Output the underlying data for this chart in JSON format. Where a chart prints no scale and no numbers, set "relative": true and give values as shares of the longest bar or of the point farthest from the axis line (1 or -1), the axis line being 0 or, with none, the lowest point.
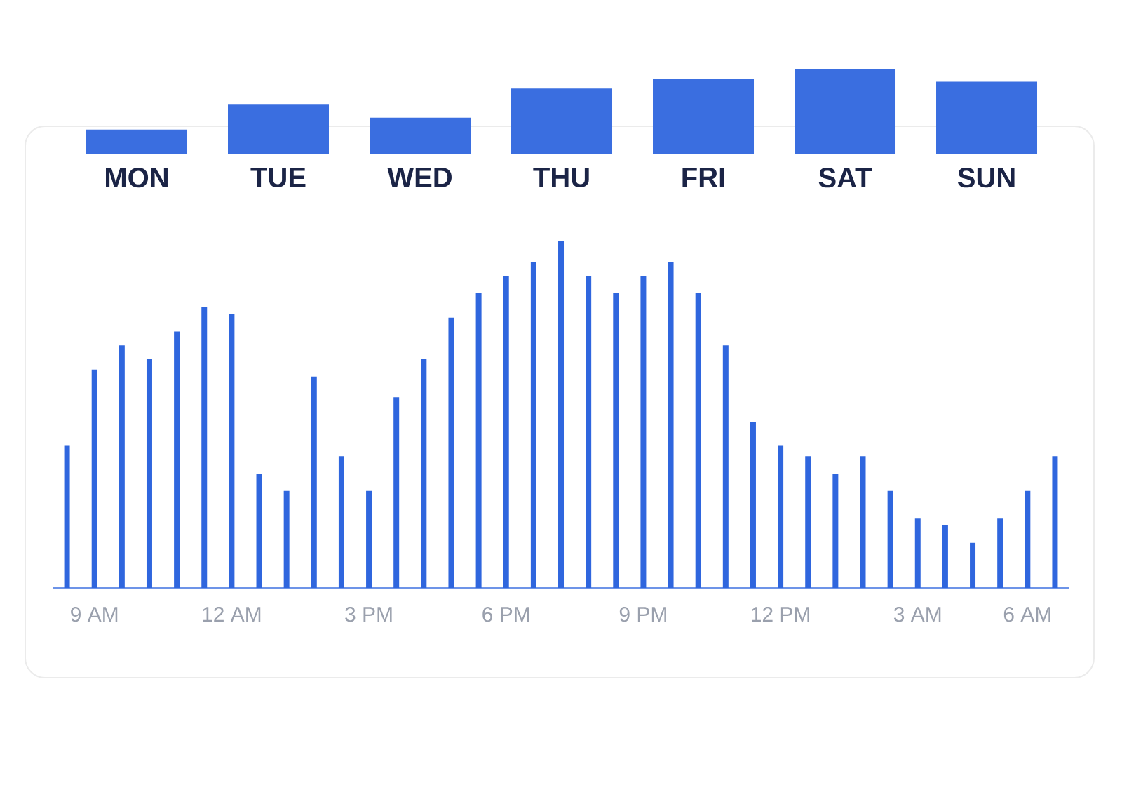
{
  "chart_data": [
    {
      "type": "bar",
      "relative": true,
      "color": "#3a6ee0",
      "categories": [
        "MON",
        "TUE",
        "WED",
        "THU",
        "FRI",
        "SAT",
        "SUN"
      ],
      "values": [
        0.29,
        0.59,
        0.43,
        0.77,
        0.88,
        1,
        0.85
      ]
    },
    {
      "type": "bar",
      "relative": true,
      "color": "#2f66de",
      "categories": [
        null,
        "9 AM",
        null,
        null,
        null,
        null,
        "12 AM",
        null,
        null,
        null,
        null,
        "3 PM",
        null,
        null,
        null,
        null,
        "6 PM",
        null,
        null,
        null,
        null,
        "9 PM",
        null,
        null,
        null,
        null,
        "12 PM",
        null,
        null,
        null,
        null,
        "3 AM",
        null,
        null,
        null,
        "6 AM",
        null
      ],
      "values": [
        0.41,
        0.63,
        0.7,
        0.66,
        0.74,
        0.81,
        0.79,
        0.33,
        0.28,
        0.61,
        0.38,
        0.28,
        0.55,
        0.66,
        0.78,
        0.85,
        0.9,
        0.94,
        1,
        0.9,
        0.85,
        0.9,
        0.94,
        0.85,
        0.7,
        0.48,
        0.41,
        0.38,
        0.33,
        0.38,
        0.28,
        0.2,
        0.18,
        0.13,
        0.2,
        0.28,
        0.38
      ]
    }
  ]
}
